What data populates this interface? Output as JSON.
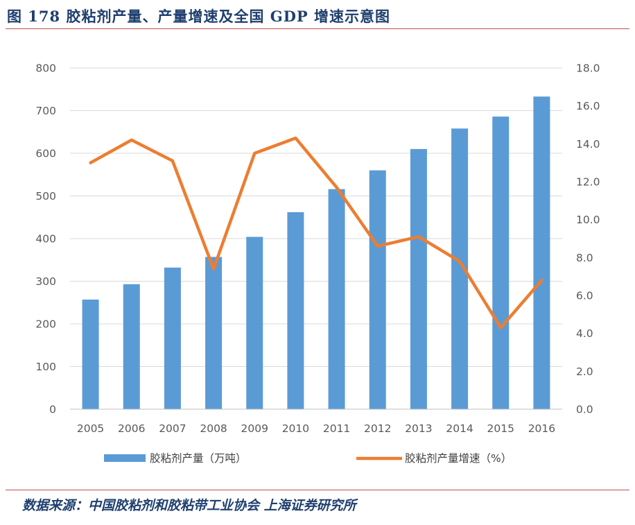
{
  "figure": {
    "title": "图 178 胶粘剂产量、产量增速及全国 GDP 增速示意图",
    "source": "数据来源：中国胶粘剂和胶粘带工业协会 上海证券研究所"
  },
  "colors": {
    "bar": "#5b9bd5",
    "line": "#ed7d31",
    "rule": "#c0504d",
    "title": "#1f3f6e",
    "grid": "#d9d9d9",
    "tick": "#595959"
  },
  "chart_data": {
    "type": "bar",
    "title": "",
    "categories": [
      "2005",
      "2006",
      "2007",
      "2008",
      "2009",
      "2010",
      "2011",
      "2012",
      "2013",
      "2014",
      "2015",
      "2016"
    ],
    "series": [
      {
        "name": "胶粘剂产量（万吨）",
        "type": "bar",
        "axis": "left",
        "values": [
          257,
          293,
          332,
          357,
          404,
          462,
          516,
          560,
          610,
          658,
          686,
          733
        ]
      },
      {
        "name": "胶粘剂产量增速（%）",
        "type": "line",
        "axis": "right",
        "values": [
          13.0,
          14.2,
          13.1,
          7.4,
          13.5,
          14.3,
          11.7,
          8.6,
          9.1,
          7.8,
          4.3,
          6.8
        ]
      }
    ],
    "y_left": {
      "range": [
        0,
        800
      ],
      "ticks": [
        "0",
        "100",
        "200",
        "300",
        "400",
        "500",
        "600",
        "700",
        "800"
      ]
    },
    "y_right": {
      "range": [
        0,
        18
      ],
      "ticks": [
        "0.0",
        "2.0",
        "4.0",
        "6.0",
        "8.0",
        "10.0",
        "12.0",
        "14.0",
        "16.0",
        "18.0"
      ]
    },
    "grid": true,
    "legend_position": "bottom"
  }
}
